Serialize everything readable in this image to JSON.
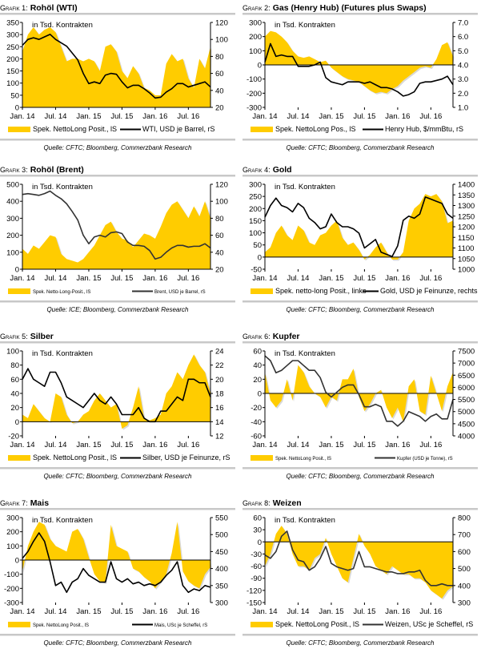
{
  "source_prefix": "Quelle:",
  "unit_note": "in Tsd. Kontrakten",
  "x_tick_labels": [
    "Jan. 14",
    "Jul. 14",
    "Jan. 15",
    "Jul. 15",
    "Jan. 16",
    "Jul. 16"
  ],
  "colors": {
    "area": "#FFCC00",
    "area_shadow": "#d9d9d9",
    "line": "#000000",
    "line_dark": "#333333",
    "rule": "#c8c8c8"
  },
  "chart_data": [
    {
      "type": "area+line",
      "label": "Grafik 1:",
      "title": "Rohöl (WTI)",
      "x_start": "2014-01",
      "x_end": "2016-11",
      "left_ylim": [
        0,
        350
      ],
      "left_ticks": [
        "0",
        "50",
        "100",
        "150",
        "200",
        "250",
        "300",
        "350"
      ],
      "right_ylim": [
        20,
        120
      ],
      "right_ticks": [
        "20",
        "40",
        "60",
        "80",
        "100",
        "120"
      ],
      "area": {
        "name": "Spek. NettoLong Posit., lS",
        "values": [
          230,
          300,
          330,
          300,
          320,
          330,
          310,
          250,
          190,
          200,
          200,
          190,
          200,
          190,
          150,
          250,
          260,
          230,
          150,
          120,
          170,
          140,
          80,
          70,
          50,
          50,
          180,
          220,
          190,
          200,
          120,
          80,
          200,
          160,
          250
        ]
      },
      "line": {
        "name": "WTI, USD je Barrel, rS",
        "values": [
          93,
          100,
          102,
          100,
          103,
          106,
          100,
          96,
          92,
          84,
          76,
          60,
          48,
          50,
          48,
          58,
          60,
          59,
          50,
          43,
          46,
          46,
          42,
          37,
          31,
          32,
          38,
          42,
          48,
          48,
          44,
          46,
          48,
          50,
          44
        ]
      },
      "legend_small": false,
      "dark_line": false,
      "source": "Quelle: CFTC; Bloomberg, Commerzbank Research"
    },
    {
      "type": "area+line",
      "label": "Grafik 2:",
      "title": "Gas (Henry Hub) (Futures plus Swaps)",
      "x_start": "2014-01",
      "x_end": "2016-11",
      "left_ylim": [
        -300,
        300
      ],
      "left_ticks": [
        "-300",
        "-200",
        "-100",
        "0",
        "100",
        "200",
        "300"
      ],
      "right_ylim": [
        1,
        7
      ],
      "right_ticks": [
        "1.0",
        "2.0",
        "3.0",
        "4.0",
        "5.0",
        "6.0",
        "7.0"
      ],
      "area": {
        "name": "Spek. NettoLong Pos., lS",
        "values": [
          200,
          240,
          230,
          200,
          160,
          100,
          60,
          50,
          60,
          40,
          20,
          30,
          -20,
          -50,
          -80,
          -100,
          -110,
          -120,
          -150,
          -180,
          -200,
          -190,
          -200,
          -170,
          -150,
          -110,
          -80,
          -50,
          -20,
          -10,
          -20,
          40,
          140,
          160,
          60
        ]
      },
      "line": {
        "name": "Henry Hub, $/mmBtu, rS",
        "values": [
          4.2,
          5.5,
          4.6,
          4.7,
          4.6,
          4.6,
          3.9,
          3.9,
          3.9,
          4.0,
          4.2,
          3.1,
          2.8,
          2.7,
          2.6,
          2.8,
          2.8,
          2.8,
          2.7,
          2.8,
          2.6,
          2.4,
          2.4,
          2.3,
          2.1,
          1.8,
          1.9,
          2.1,
          2.7,
          2.8,
          2.8,
          2.9,
          3.0,
          3.2,
          2.6
        ]
      },
      "legend_small": false,
      "dark_line": false,
      "source": "Quelle: CFTC; Bloomberg, Commerzbank Research"
    },
    {
      "type": "area+line",
      "label": "Grafik 3:",
      "title": "Rohöl (Brent)",
      "x_start": "2014-01",
      "x_end": "2016-11",
      "left_ylim": [
        0,
        500
      ],
      "left_ticks": [
        "0",
        "100",
        "200",
        "300",
        "400",
        "500"
      ],
      "right_ylim": [
        20,
        120
      ],
      "right_ticks": [
        "20",
        "40",
        "60",
        "80",
        "100",
        "120"
      ],
      "area": {
        "name": "Spek. Netto-Long-Posit., lS",
        "values": [
          120,
          90,
          140,
          120,
          160,
          200,
          190,
          90,
          60,
          50,
          40,
          60,
          100,
          140,
          200,
          260,
          280,
          220,
          180,
          170,
          130,
          170,
          210,
          200,
          180,
          250,
          330,
          380,
          400,
          350,
          300,
          370,
          310,
          400,
          300
        ]
      },
      "line": {
        "name": "Brent, USD je Barrel, rS",
        "values": [
          108,
          109,
          108,
          107,
          109,
          112,
          107,
          103,
          97,
          88,
          78,
          60,
          50,
          58,
          60,
          58,
          63,
          64,
          62,
          52,
          48,
          48,
          47,
          42,
          32,
          34,
          40,
          45,
          48,
          48,
          46,
          47,
          47,
          50,
          45
        ]
      },
      "legend_small": true,
      "dark_line": true,
      "source": "Quelle: ICE; Bloomberg, Commerzbank Research"
    },
    {
      "type": "area+line",
      "label": "Grafik 4:",
      "title": "Gold",
      "x_start": "2014-01",
      "x_end": "2016-11",
      "left_ylim": [
        -50,
        300
      ],
      "left_ticks": [
        "-50",
        "0",
        "50",
        "100",
        "150",
        "200",
        "250",
        "300"
      ],
      "right_ylim": [
        1000,
        1400
      ],
      "right_ticks": [
        "1000",
        "1050",
        "1100",
        "1150",
        "1200",
        "1250",
        "1300",
        "1350",
        "1400"
      ],
      "area": {
        "name": "Spek. netto-long Posit., links",
        "values": [
          20,
          40,
          100,
          130,
          90,
          70,
          130,
          110,
          60,
          50,
          90,
          100,
          130,
          150,
          80,
          50,
          60,
          30,
          -10,
          10,
          40,
          60,
          20,
          -10,
          -10,
          20,
          150,
          200,
          220,
          260,
          250,
          260,
          230,
          140,
          150
        ]
      },
      "line": {
        "name": "Gold, USD je Feinunze, rechts",
        "values": [
          1245,
          1300,
          1335,
          1300,
          1290,
          1270,
          1310,
          1290,
          1240,
          1220,
          1190,
          1200,
          1260,
          1220,
          1200,
          1200,
          1190,
          1170,
          1100,
          1120,
          1140,
          1080,
          1070,
          1060,
          1110,
          1230,
          1250,
          1240,
          1260,
          1340,
          1330,
          1320,
          1310,
          1260,
          1240
        ]
      },
      "legend_small": false,
      "dark_line": false,
      "source": "Quelle: CFTC; Bloomberg, Commerzbank Research"
    },
    {
      "type": "area+line",
      "label": "Grafik 5:",
      "title": "Silber",
      "x_start": "2014-01",
      "x_end": "2016-11",
      "left_ylim": [
        -20,
        100
      ],
      "left_ticks": [
        "-20",
        "0",
        "20",
        "40",
        "60",
        "80",
        "100"
      ],
      "right_ylim": [
        12,
        24
      ],
      "right_ticks": [
        "12",
        "14",
        "16",
        "18",
        "20",
        "22",
        "24"
      ],
      "area": {
        "name": "Spek. NettoLong Posit., lS",
        "values": [
          10,
          5,
          25,
          15,
          5,
          0,
          40,
          35,
          10,
          -2,
          0,
          10,
          15,
          30,
          40,
          30,
          20,
          25,
          -10,
          -5,
          20,
          50,
          5,
          2,
          5,
          10,
          40,
          50,
          70,
          60,
          80,
          95,
          80,
          70,
          40
        ]
      },
      "line": {
        "name": "Silber, USD je Feinunze, rS",
        "values": [
          20,
          21.5,
          20,
          19.5,
          19,
          21,
          21,
          19.5,
          17.5,
          17,
          16.5,
          16,
          17,
          18,
          17,
          16.5,
          17.5,
          16.5,
          15,
          15,
          15,
          16,
          14.5,
          14,
          14,
          15.5,
          15.5,
          16.5,
          17.5,
          17,
          20,
          20,
          19.5,
          19.5,
          17.5
        ]
      },
      "legend_small": false,
      "dark_line": false,
      "source": "Quelle: CFTC; Bloomberg, Commerzbank Research"
    },
    {
      "type": "area+line",
      "label": "Grafik 6:",
      "title": "Kupfer",
      "x_start": "2014-01",
      "x_end": "2016-11",
      "left_ylim": [
        -60,
        60
      ],
      "left_ticks": [
        "-60",
        "-40",
        "-20",
        "0",
        "20",
        "40",
        "60"
      ],
      "right_ylim": [
        4000,
        7500
      ],
      "right_ticks": [
        "4000",
        "4500",
        "5000",
        "5500",
        "6000",
        "6500",
        "7000",
        "7500"
      ],
      "area": {
        "name": "Spek. NettoLong Posit., lS",
        "values": [
          30,
          -10,
          -20,
          -10,
          20,
          -10,
          40,
          30,
          10,
          0,
          -5,
          -20,
          -5,
          -10,
          20,
          20,
          35,
          -5,
          -25,
          -15,
          0,
          5,
          -20,
          -35,
          -20,
          -40,
          10,
          20,
          -25,
          -30,
          25,
          0,
          -25,
          10,
          30
        ]
      },
      "line": {
        "name": "Kupfer (USD je Tonne), rS",
        "values": [
          7300,
          7100,
          6600,
          6700,
          6900,
          7100,
          7100,
          6900,
          6700,
          6700,
          6400,
          5800,
          5600,
          5800,
          6000,
          6100,
          6100,
          5700,
          5200,
          5200,
          5300,
          5200,
          4600,
          4600,
          4400,
          4600,
          5000,
          4900,
          4800,
          4600,
          4800,
          4900,
          4700,
          4700,
          5500
        ]
      },
      "legend_small": true,
      "dark_line": true,
      "source": "Quelle: CFTC; Bloomberg, Commerzbank Research"
    },
    {
      "type": "area+line",
      "label": "Grafik 7:",
      "title": "Mais",
      "x_start": "2014-01",
      "x_end": "2016-11",
      "left_ylim": [
        -300,
        300
      ],
      "left_ticks": [
        "-300",
        "-200",
        "-100",
        "0",
        "100",
        "200",
        "300"
      ],
      "right_ylim": [
        300,
        550
      ],
      "right_ticks": [
        "300",
        "350",
        "400",
        "450",
        "500",
        "550"
      ],
      "area": {
        "name": "Spek. NettoLong Posit., lS",
        "values": [
          -80,
          100,
          200,
          270,
          250,
          150,
          100,
          80,
          60,
          200,
          220,
          150,
          20,
          -100,
          -150,
          -160,
          250,
          100,
          80,
          60,
          -60,
          -80,
          -120,
          -150,
          -200,
          -150,
          -100,
          50,
          270,
          -80,
          -150,
          -180,
          -200,
          -100,
          -50
        ]
      },
      "line": {
        "name": "Mais, USc je Scheffel, rS",
        "values": [
          430,
          450,
          480,
          505,
          480,
          420,
          350,
          360,
          330,
          360,
          370,
          400,
          380,
          370,
          360,
          360,
          420,
          370,
          360,
          370,
          355,
          360,
          350,
          355,
          350,
          360,
          380,
          395,
          420,
          350,
          330,
          340,
          335,
          350,
          345
        ]
      },
      "legend_small": true,
      "dark_line": false,
      "source": "Quelle: CFTC; Bloomberg, Commerzbank Research"
    },
    {
      "type": "area+line",
      "label": "Grafik 8:",
      "title": "Weizen",
      "x_start": "2014-01",
      "x_end": "2016-11",
      "left_ylim": [
        -150,
        60
      ],
      "left_ticks": [
        "-150",
        "-120",
        "-90",
        "-60",
        "-30",
        "0",
        "30",
        "60"
      ],
      "right_ylim": [
        300,
        800
      ],
      "right_ticks": [
        "300",
        "400",
        "500",
        "600",
        "700",
        "800"
      ],
      "area": {
        "name": "Spek. NettoLong Posit., lS",
        "values": [
          -60,
          -30,
          20,
          40,
          20,
          -30,
          -60,
          -60,
          -70,
          -40,
          -30,
          10,
          -30,
          -60,
          -90,
          -100,
          -40,
          20,
          -10,
          -30,
          -60,
          -70,
          -80,
          -60,
          -70,
          -80,
          -80,
          -90,
          -90,
          -100,
          -120,
          -130,
          -140,
          -120,
          -110
        ]
      },
      "line": {
        "name": "Weizen, USc je Scheffel, rS",
        "values": [
          580,
          560,
          600,
          690,
          720,
          610,
          550,
          540,
          490,
          510,
          560,
          630,
          530,
          510,
          500,
          490,
          500,
          600,
          510,
          510,
          500,
          490,
          480,
          480,
          470,
          470,
          480,
          480,
          490,
          430,
          400,
          400,
          410,
          400,
          400
        ]
      },
      "legend_small": false,
      "dark_line": true,
      "source": "Quelle: CFTC; Bloomberg, Commerzbank Research"
    }
  ]
}
